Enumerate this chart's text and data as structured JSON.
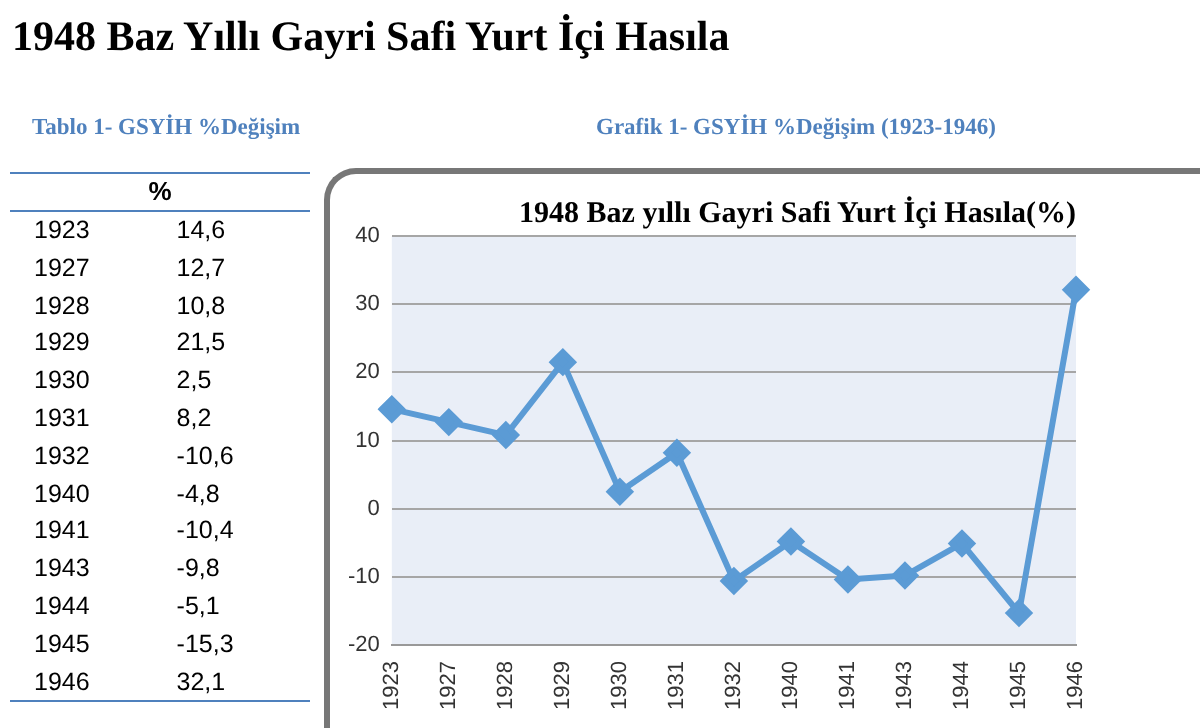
{
  "chart_data": [
    {
      "type": "other",
      "title": "1948 Baz Yıllı Gayri Safi Yurt İçi Hasıla",
      "subtitle": "Tablo 1- GSYİH %Değişim",
      "annotations": [
        "%",
        "1923 14,6",
        "1927 12,7",
        "1928 10,8",
        "1929 21,5",
        "1930 2,5",
        "1931 8,2",
        "1932 -10,6",
        "1940 -4,8",
        "1941 -10,4",
        "1943 -9,8",
        "1944 -5,1",
        "1945 -15,3",
        "1946 32,1"
      ]
    },
    {
      "type": "line",
      "title": "1948 Baz yıllı Gayri Safi Yurt İçi Hasıla(%)",
      "subtitle": "Grafik 1- GSYİH %Değişim (1923-1946)",
      "categories": [
        "1923",
        "1927",
        "1928",
        "1929",
        "1930",
        "1931",
        "1932",
        "1940",
        "1941",
        "1943",
        "1944",
        "1945",
        "1946"
      ],
      "values": [
        14.6,
        12.7,
        10.8,
        21.5,
        2.5,
        8.2,
        -10.6,
        -4.8,
        -10.4,
        -9.8,
        -5.1,
        -15.3,
        32.1
      ],
      "color": "#5b9bd5",
      "marker": "diamond",
      "ylim": [
        -20,
        40
      ],
      "yticks": [
        -20,
        -10,
        0,
        10,
        20,
        30,
        40
      ],
      "grid": "y"
    }
  ]
}
